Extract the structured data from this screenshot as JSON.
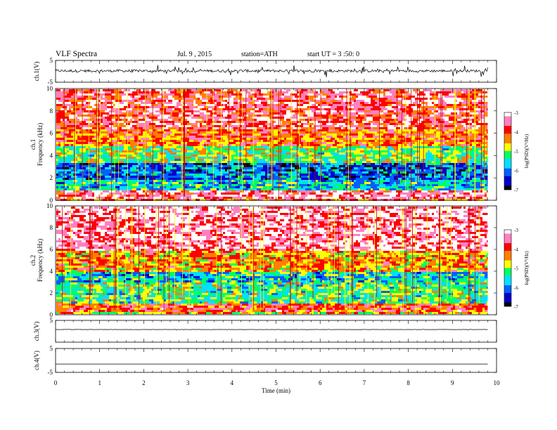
{
  "header": {
    "title": "VLF Spectra",
    "date": "Jul. 9 , 2015",
    "station": "station=ATH",
    "start": "start UT = 3 :50: 0"
  },
  "chart_data": [
    {
      "id": "ch1-waveform",
      "type": "line",
      "ylabel": "ch.1(V)",
      "ylim": [
        -5,
        5
      ],
      "yticks": [
        "5",
        "-5"
      ],
      "xlim": [
        0,
        10
      ],
      "data_end_min": 9.8,
      "description_level": 0.2,
      "noise_amplitude": 1.2
    },
    {
      "id": "ch1-spectrogram",
      "type": "heatmap",
      "ylabel": "ch.1",
      "ylabel2": "Frequency (kHz)",
      "ylim": [
        0,
        10
      ],
      "yticks": [
        "0",
        "2",
        "4",
        "6",
        "8",
        "10"
      ],
      "xlim": [
        0,
        10
      ],
      "data_end_min": 9.8,
      "bands": [
        {
          "from_khz": 0,
          "to_khz": 0.3,
          "log_psd": -4.2
        },
        {
          "from_khz": 0.3,
          "to_khz": 1.0,
          "log_psd": -3.4
        },
        {
          "from_khz": 1.0,
          "to_khz": 2.0,
          "log_psd": -5.6
        },
        {
          "from_khz": 2.0,
          "to_khz": 3.5,
          "log_psd": -6.1
        },
        {
          "from_khz": 3.5,
          "to_khz": 5.0,
          "log_psd": -5.1
        },
        {
          "from_khz": 5.0,
          "to_khz": 6.5,
          "log_psd": -4.2
        },
        {
          "from_khz": 6.5,
          "to_khz": 10,
          "log_psd": -3.6
        }
      ]
    },
    {
      "id": "ch2-spectrogram",
      "type": "heatmap",
      "ylabel": "ch.2",
      "ylabel2": "Frequency (kHz)",
      "ylim": [
        0,
        10
      ],
      "yticks": [
        "0",
        "2",
        "4",
        "6",
        "8",
        "10"
      ],
      "xlim": [
        0,
        10
      ],
      "data_end_min": 9.8,
      "bands": [
        {
          "from_khz": 0,
          "to_khz": 0.4,
          "log_psd": -4.6
        },
        {
          "from_khz": 0.4,
          "to_khz": 1.2,
          "log_psd": -4.0
        },
        {
          "from_khz": 1.2,
          "to_khz": 3.0,
          "log_psd": -5.2
        },
        {
          "from_khz": 3.0,
          "to_khz": 4.0,
          "log_psd": -5.6
        },
        {
          "from_khz": 4.0,
          "to_khz": 6.0,
          "log_psd": -4.4
        },
        {
          "from_khz": 6.0,
          "to_khz": 10,
          "log_psd": -3.3
        }
      ]
    },
    {
      "id": "ch3-waveform",
      "type": "line",
      "ylabel": "ch.3(V)",
      "ylim": [
        -5,
        5
      ],
      "yticks": [
        "5"
      ],
      "xlim": [
        0,
        10
      ],
      "data_end_min": 9.8,
      "description_level": 0.8,
      "noise_amplitude": 0.08
    },
    {
      "id": "ch4-waveform",
      "type": "line",
      "ylabel": "ch.4(V)",
      "ylim": [
        -5,
        5
      ],
      "yticks": [
        "5",
        "-5"
      ],
      "xlim": [
        0,
        10
      ],
      "data_end_min": 9.8,
      "description_level": -1.5,
      "noise_amplitude": 0.0
    }
  ],
  "colorbars": [
    {
      "id": "ch1-colorbar",
      "label": "log(PSD)(V²/Hz)",
      "range": [
        -7,
        -3
      ],
      "ticks": [
        "-3",
        "-4",
        "-5",
        "-6",
        "-7"
      ]
    },
    {
      "id": "ch2-colorbar",
      "label": "log(PSD)(V²/Hz)",
      "range": [
        -7,
        -3
      ],
      "ticks": [
        "-3",
        "-4",
        "-5",
        "-6",
        "-7"
      ]
    }
  ],
  "x_axis": {
    "label": "Time (min)",
    "range": [
      0,
      10
    ],
    "ticks": [
      "0",
      "1",
      "2",
      "3",
      "4",
      "5",
      "6",
      "7",
      "8",
      "9",
      "10"
    ]
  },
  "colors": {
    "scale": [
      "#000000",
      "#0000cc",
      "#0060ff",
      "#00e0ff",
      "#00ff60",
      "#ffff00",
      "#ff8000",
      "#ff0000",
      "#ff80c0",
      "#ffffff"
    ]
  }
}
